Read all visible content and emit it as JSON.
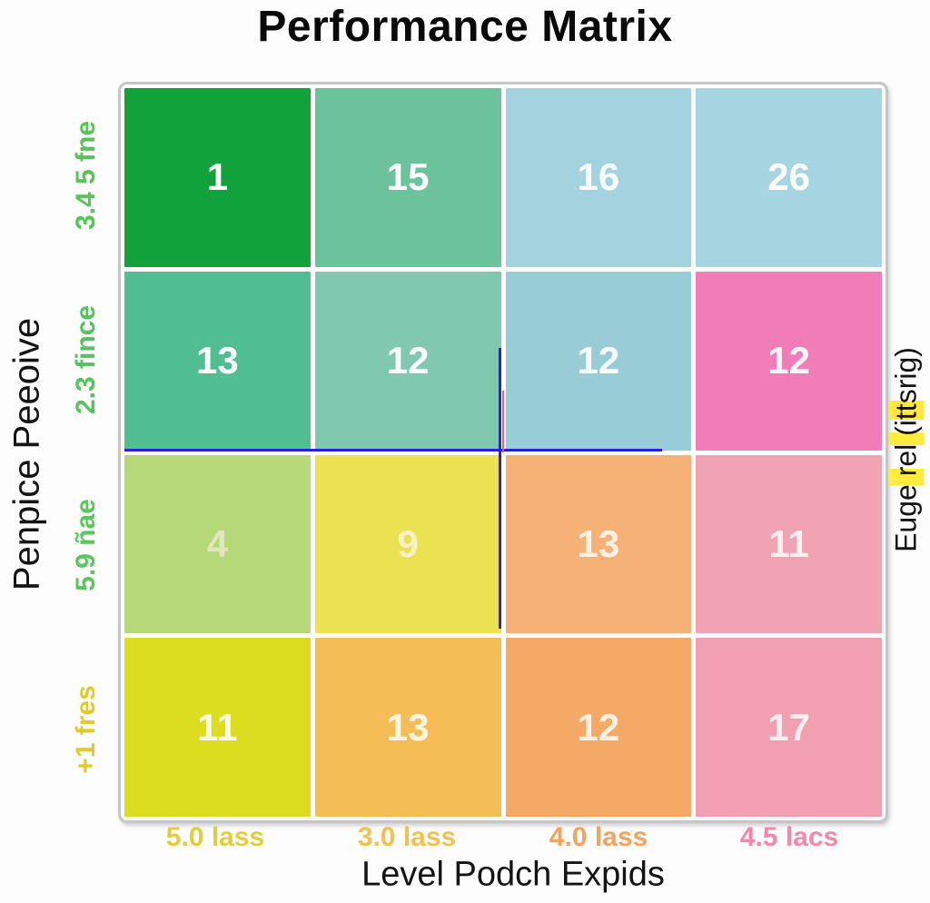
{
  "chart_data": {
    "type": "heatmap",
    "title": "Performance Matrix",
    "xlabel": "Level Podch Expids",
    "ylabel": "Penpice Peeoive",
    "right_label": "Euge rel (ittsrig)",
    "grid": "off",
    "x_ticks": [
      {
        "label": "5.0 lass",
        "color": "#e4cd3c"
      },
      {
        "label": "3.0 lass",
        "color": "#f2c150"
      },
      {
        "label": "4.0 lass",
        "color": "#f5a45e"
      },
      {
        "label": "4.5 lacs",
        "color": "#f587a9"
      }
    ],
    "y_ticks": [
      {
        "label": "3.4 5 fne",
        "color": "#56c556"
      },
      {
        "label": "2.3 fince",
        "color": "#54c360"
      },
      {
        "label": "5.9 ñae",
        "color": "#5bc75b"
      },
      {
        "label": "+1 fres",
        "color": "#e3ca2b"
      }
    ],
    "cells": [
      [
        {
          "v": 1,
          "bg": "#12a23b",
          "fg": "#fbfcfb"
        },
        {
          "v": 15,
          "bg": "#6cc39b",
          "fg": "#fcfdfc"
        },
        {
          "v": 16,
          "bg": "#a5d2df",
          "fg": "#f8fcfc"
        },
        {
          "v": 26,
          "bg": "#a7d4e1",
          "fg": "#f9fdfd"
        }
      ],
      [
        {
          "v": 13,
          "bg": "#50bd93",
          "fg": "#f8fcf9"
        },
        {
          "v": 12,
          "bg": "#80c9b0",
          "fg": "#fafdfb"
        },
        {
          "v": 12,
          "bg": "#98cdd8",
          "fg": "#f7fbfb"
        },
        {
          "v": 12,
          "bg": "#f27cb8",
          "fg": "#fdf5fa"
        }
      ],
      [
        {
          "v": 4,
          "bg": "#b6d879",
          "fg": "#dfe7bc"
        },
        {
          "v": 9,
          "bg": "#ebe251",
          "fg": "#f7f1c6"
        },
        {
          "v": 13,
          "bg": "#f5b176",
          "fg": "#fdf2e3"
        },
        {
          "v": 11,
          "bg": "#f2a3b3",
          "fg": "#fcf0ef"
        }
      ],
      [
        {
          "v": 11,
          "bg": "#dcdd1e",
          "fg": "#fbfbe9"
        },
        {
          "v": 13,
          "bg": "#f4bd56",
          "fg": "#fdf6e4"
        },
        {
          "v": 12,
          "bg": "#f5a966",
          "fg": "#fdf1e2"
        },
        {
          "v": 17,
          "bg": "#f2a0b1",
          "fg": "#fdeff0"
        }
      ]
    ],
    "annotations": {
      "crosshair_color": "#2a1ee0",
      "crosshair_secondary_color": "#d8608a"
    }
  }
}
